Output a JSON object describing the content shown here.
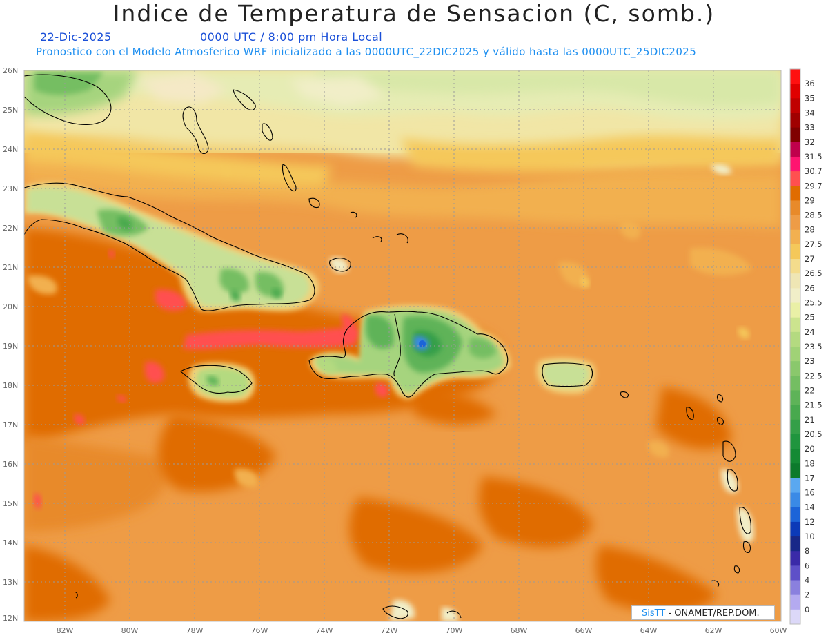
{
  "title": "Indice de Temperatura de Sensacion (C, somb.)",
  "date": "22-Dic-2025",
  "time": "0000 UTC / 8:00 pm Hora Local",
  "subtitle": "Pronostico con el Modelo Atmosferico WRF inicializado a las 0000UTC_22DIC2025 y válido hasta las  0000UTC_25DIC2025",
  "credit": {
    "brand": "SisTT",
    "text": "- ONAMET/REP.DOM."
  },
  "axes": {
    "lat_labels": [
      "26N",
      "25N",
      "24N",
      "23N",
      "22N",
      "21N",
      "20N",
      "19N",
      "18N",
      "17N",
      "16N",
      "15N",
      "14N",
      "13N",
      "12N"
    ],
    "lon_labels": [
      "82W",
      "80W",
      "78W",
      "76W",
      "74W",
      "72W",
      "70W",
      "68W",
      "66W",
      "64W",
      "62W",
      "60W"
    ],
    "lat_range": [
      12,
      26
    ],
    "lon_range": [
      -83.25,
      -60
    ]
  },
  "colorbar": {
    "labels": [
      "36",
      "35",
      "34",
      "33",
      "32",
      "31.5",
      "30.7",
      "29.7",
      "29",
      "28.5",
      "28",
      "27.5",
      "27",
      "26.5",
      "26",
      "25.5",
      "25",
      "24",
      "23.5",
      "23",
      "22.5",
      "22",
      "21.5",
      "21",
      "20.5",
      "20",
      "18",
      "17",
      "16",
      "14",
      "12",
      "10",
      "8",
      "6",
      "4",
      "2",
      "0"
    ],
    "colors": [
      "#ff1010",
      "#e00000",
      "#c00000",
      "#a00000",
      "#800000",
      "#c0004c",
      "#ff1470",
      "#ff5050",
      "#e06c00",
      "#e88a2a",
      "#ee9c46",
      "#f2b050",
      "#f5c85a",
      "#f4dc8c",
      "#efe6b4",
      "#f1eec8",
      "#eaf0a6",
      "#cce48e",
      "#b4da80",
      "#a0d276",
      "#8ac86c",
      "#74be62",
      "#5eb358",
      "#48a94e",
      "#349f48",
      "#20953e",
      "#148a34",
      "#0c7a2c",
      "#5aa8f0",
      "#3a8ae6",
      "#1c64d8",
      "#0c3ab8",
      "#182888",
      "#3a2aa8",
      "#5e50c8",
      "#8a80de",
      "#b4aaf0",
      "#dcd8f8"
    ]
  },
  "legend_swatches": "field colours above map to temperature classes"
}
